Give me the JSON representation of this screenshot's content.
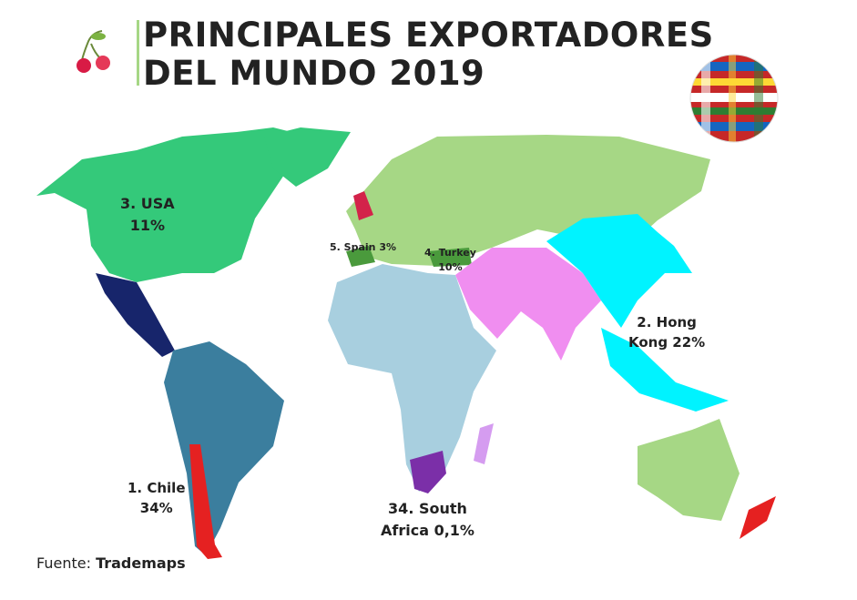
{
  "header": {
    "title_lines": [
      "PRINCIPALES EXPORTADORES",
      "DEL MUNDO 2019"
    ]
  },
  "labels": [
    {
      "lines": [
        "3. USA",
        "11%"
      ]
    },
    {
      "lines": [
        "5. Spain 3%"
      ]
    },
    {
      "lines": [
        "4. Turkey",
        "10%"
      ]
    },
    {
      "lines": [
        "2. Hong",
        "Kong 22%"
      ]
    },
    {
      "lines": [
        "1. Chile",
        "34%"
      ]
    },
    {
      "lines": [
        "34. South",
        "Africa 0,1%"
      ]
    }
  ],
  "source": {
    "prefix": "Fuente:",
    "name": "Trademaps"
  }
}
